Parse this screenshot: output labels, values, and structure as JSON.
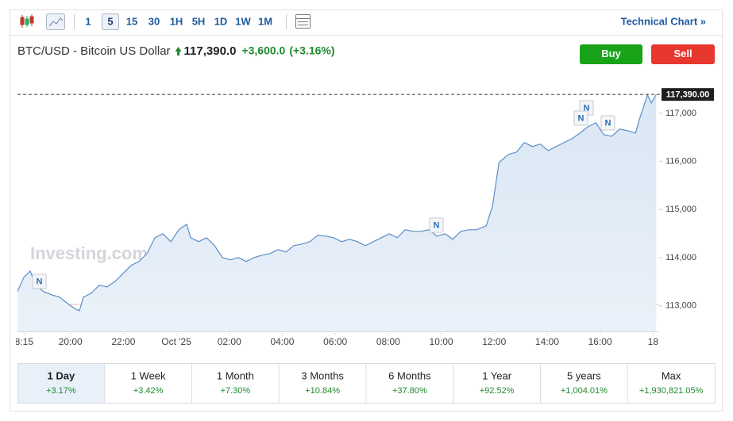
{
  "toolbar": {
    "intervals": [
      "1",
      "5",
      "15",
      "30",
      "1H",
      "5H",
      "1D",
      "1W",
      "1M"
    ],
    "technical_chart": "Technical Chart »"
  },
  "header": {
    "title": "BTC/USD - Bitcoin US Dollar",
    "price": "117,390.0",
    "change": "+3,600.0",
    "change_pct": "(+3.16%)",
    "buy": "Buy",
    "sell": "Sell"
  },
  "chart_data": {
    "type": "area",
    "color": "#5b8fc7",
    "watermark": "Investing.com",
    "news_marker": "N",
    "grid": false,
    "xlim": [
      18,
      42.2
    ],
    "ylim": [
      112470,
      117870
    ],
    "xticks": [
      {
        "value": 18.25,
        "label": "8:15"
      },
      {
        "value": 20,
        "label": "20:00"
      },
      {
        "value": 22,
        "label": "22:00"
      },
      {
        "value": 24,
        "label": "Oct '25"
      },
      {
        "value": 26,
        "label": "02:00"
      },
      {
        "value": 28,
        "label": "04:00"
      },
      {
        "value": 30,
        "label": "06:00"
      },
      {
        "value": 32,
        "label": "08:00"
      },
      {
        "value": 34,
        "label": "10:00"
      },
      {
        "value": 36,
        "label": "12:00"
      },
      {
        "value": 38,
        "label": "14:00"
      },
      {
        "value": 40,
        "label": "16:00"
      },
      {
        "value": 42,
        "label": "18"
      }
    ],
    "yticks": [
      {
        "value": 113000,
        "label": "113,000"
      },
      {
        "value": 114000,
        "label": "114,000"
      },
      {
        "value": 115000,
        "label": "115,000"
      },
      {
        "value": 116000,
        "label": "116,000"
      },
      {
        "value": 117000,
        "label": "117,000"
      }
    ],
    "last_price": {
      "value": 117390,
      "label": "117,390.00"
    },
    "baseline": 113030,
    "x": [
      18.0,
      18.24,
      18.48,
      18.69,
      18.99,
      19.29,
      19.59,
      19.89,
      20.19,
      20.34,
      20.49,
      20.79,
      21.09,
      21.39,
      21.69,
      21.99,
      22.29,
      22.59,
      22.89,
      23.19,
      23.49,
      23.79,
      24.09,
      24.39,
      24.54,
      24.84,
      25.14,
      25.44,
      25.74,
      26.04,
      26.34,
      26.64,
      26.94,
      27.24,
      27.54,
      27.84,
      28.14,
      28.44,
      28.74,
      29.04,
      29.34,
      29.64,
      29.94,
      30.24,
      30.54,
      30.84,
      31.14,
      31.44,
      31.74,
      32.04,
      32.34,
      32.64,
      32.94,
      33.24,
      33.54,
      33.84,
      34.14,
      34.44,
      34.74,
      35.04,
      35.34,
      35.7,
      35.94,
      36.18,
      36.54,
      36.84,
      37.14,
      37.44,
      37.74,
      38.04,
      38.34,
      38.64,
      38.94,
      39.24,
      39.54,
      39.84,
      40.14,
      40.44,
      40.74,
      41.04,
      41.34,
      41.49,
      41.79,
      41.94,
      42.12
    ],
    "values": [
      113296,
      113593,
      113724,
      113428,
      113296,
      113230,
      113181,
      113049,
      112934,
      112901,
      113181,
      113263,
      113428,
      113395,
      113510,
      113675,
      113840,
      113922,
      114086,
      114416,
      114498,
      114333,
      114580,
      114695,
      114416,
      114333,
      114416,
      114251,
      114004,
      113955,
      114004,
      113922,
      114004,
      114053,
      114086,
      114169,
      114119,
      114251,
      114284,
      114333,
      114465,
      114449,
      114416,
      114333,
      114383,
      114333,
      114251,
      114333,
      114416,
      114498,
      114416,
      114580,
      114547,
      114547,
      114580,
      114449,
      114498,
      114383,
      114547,
      114580,
      114580,
      114663,
      115074,
      115979,
      116144,
      116193,
      116391,
      116309,
      116358,
      116226,
      116309,
      116391,
      116473,
      116588,
      116720,
      116802,
      116556,
      116523,
      116671,
      116638,
      116588,
      116885,
      117379,
      117214,
      117390
    ]
  },
  "periods": [
    {
      "label": "1 Day",
      "change": "+3.17%"
    },
    {
      "label": "1 Week",
      "change": "+3.42%"
    },
    {
      "label": "1 Month",
      "change": "+7.30%"
    },
    {
      "label": "3 Months",
      "change": "+10.84%"
    },
    {
      "label": "6 Months",
      "change": "+37.80%"
    },
    {
      "label": "1 Year",
      "change": "+92.52%"
    },
    {
      "label": "5 years",
      "change": "+1,004.01%"
    },
    {
      "label": "Max",
      "change": "+1,930,821.05%"
    }
  ]
}
